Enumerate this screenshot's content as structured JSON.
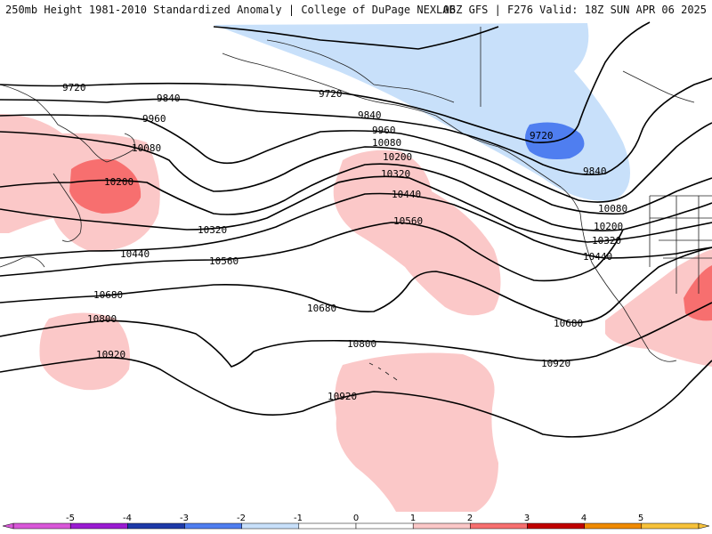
{
  "header": {
    "left": "250mb Height 1981-2010 Standardized Anomaly | College of DuPage NEXLAB",
    "right": "06Z GFS | F276 Valid: 18Z SUN APR 06 2025"
  },
  "map": {
    "contour_labels": [
      "9720",
      "9720",
      "9720",
      "9840",
      "9840",
      "9840",
      "9960",
      "9960",
      "10080",
      "10080",
      "10080",
      "10200",
      "10200",
      "10200",
      "10320",
      "10320",
      "10320",
      "10440",
      "10440",
      "10440",
      "10560",
      "10560",
      "10680",
      "10680",
      "10680",
      "10800",
      "10800",
      "10920",
      "10920",
      "10920"
    ],
    "colors": {
      "neg1": "#c8e0fa",
      "neg2": "#4f7ef0",
      "pos1": "#fbc8c8",
      "pos2": "#f76f6f",
      "contour": "#000000",
      "coast": "#222222"
    }
  },
  "colorbar": {
    "ticks": [
      "-5",
      "-4",
      "-3",
      "-2",
      "-1",
      "0",
      "1",
      "2",
      "3",
      "4",
      "5"
    ],
    "colors": [
      "#d957d9",
      "#9a1bd2",
      "#1e3aa8",
      "#4f7ef0",
      "#c8e0fa",
      "#ffffff",
      "#ffffff",
      "#fbc8c8",
      "#f76f6f",
      "#c00000",
      "#f08a00",
      "#f7c23a"
    ]
  }
}
